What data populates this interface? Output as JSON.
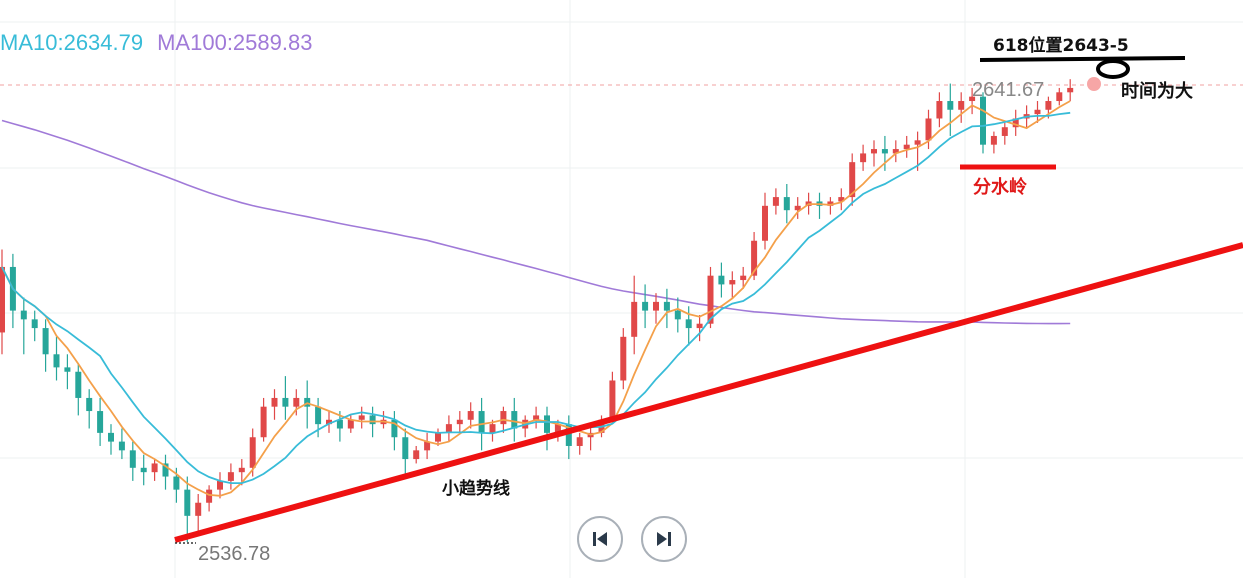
{
  "legend": {
    "ma10": "MA10:2634.79",
    "ma100": "MA100:2589.83"
  },
  "chart_data": {
    "type": "candlestick",
    "series": [
      {
        "name": "MA10:2634.79",
        "color": "#38bcd8"
      },
      {
        "name": "MA100:2589.83",
        "color": "#a07ad8"
      }
    ],
    "price_levels": {
      "high": "2641.67",
      "low": "2536.78"
    },
    "annotations": {
      "target": "618位置2643-5",
      "time": "时间为大",
      "watershed": "分水岭",
      "trendline": "小趋势线"
    },
    "colors": {
      "up": "#e04848",
      "down": "#26a69a",
      "short_ma": "#f4a04a",
      "trendline": "#ee1111"
    },
    "candles": [
      [
        2585,
        2604,
        2600,
        2580
      ],
      [
        2600,
        2603,
        2590,
        2586
      ],
      [
        2590,
        2593,
        2588,
        2580
      ],
      [
        2588,
        2590,
        2586,
        2583
      ],
      [
        2586,
        2588,
        2580,
        2576
      ],
      [
        2580,
        2584,
        2577,
        2574
      ],
      [
        2577,
        2580,
        2576,
        2572
      ],
      [
        2576,
        2578,
        2570,
        2566
      ],
      [
        2570,
        2572,
        2567,
        2563
      ],
      [
        2567,
        2570,
        2562,
        2559
      ],
      [
        2562,
        2564,
        2560,
        2557
      ],
      [
        2560,
        2563,
        2558,
        2556
      ],
      [
        2558,
        2560,
        2554,
        2551
      ],
      [
        2554,
        2557,
        2553,
        2550
      ],
      [
        2553,
        2556,
        2555,
        2551
      ],
      [
        2555,
        2557,
        2552,
        2549
      ],
      [
        2552,
        2554,
        2549,
        2546
      ],
      [
        2549,
        2552,
        2543,
        2537
      ],
      [
        2543,
        2548,
        2546,
        2539
      ],
      [
        2546,
        2550,
        2549,
        2544
      ],
      [
        2549,
        2553,
        2551,
        2547
      ],
      [
        2551,
        2555,
        2553,
        2549
      ],
      [
        2553,
        2556,
        2554,
        2550
      ],
      [
        2554,
        2563,
        2561,
        2552
      ],
      [
        2561,
        2570,
        2568,
        2560
      ],
      [
        2568,
        2572,
        2570,
        2565
      ],
      [
        2570,
        2575,
        2568,
        2565
      ],
      [
        2568,
        2572,
        2570,
        2566
      ],
      [
        2570,
        2574,
        2568,
        2563
      ],
      [
        2568,
        2570,
        2564,
        2561
      ],
      [
        2564,
        2567,
        2565,
        2562
      ],
      [
        2565,
        2567,
        2563,
        2560
      ],
      [
        2563,
        2566,
        2565,
        2562
      ],
      [
        2565,
        2568,
        2566,
        2563
      ],
      [
        2566,
        2568,
        2564,
        2561
      ],
      [
        2564,
        2567,
        2565,
        2563
      ],
      [
        2565,
        2567,
        2561,
        2558
      ],
      [
        2561,
        2563,
        2556,
        2552
      ],
      [
        2556,
        2559,
        2558,
        2555
      ],
      [
        2558,
        2562,
        2560,
        2556
      ],
      [
        2560,
        2563,
        2562,
        2559
      ],
      [
        2562,
        2566,
        2564,
        2560
      ],
      [
        2564,
        2567,
        2565,
        2562
      ],
      [
        2565,
        2569,
        2567,
        2563
      ],
      [
        2567,
        2570,
        2562,
        2558
      ],
      [
        2562,
        2565,
        2564,
        2560
      ],
      [
        2564,
        2568,
        2567,
        2562
      ],
      [
        2567,
        2570,
        2563,
        2560
      ],
      [
        2563,
        2566,
        2565,
        2561
      ],
      [
        2565,
        2568,
        2566,
        2563
      ],
      [
        2566,
        2568,
        2562,
        2558
      ],
      [
        2562,
        2565,
        2564,
        2560
      ],
      [
        2564,
        2566,
        2559,
        2556
      ],
      [
        2559,
        2562,
        2561,
        2557
      ],
      [
        2561,
        2564,
        2562,
        2558
      ],
      [
        2562,
        2566,
        2565,
        2561
      ],
      [
        2565,
        2576,
        2574,
        2564
      ],
      [
        2574,
        2586,
        2584,
        2572
      ],
      [
        2584,
        2598,
        2592,
        2580
      ],
      [
        2592,
        2596,
        2590,
        2586
      ],
      [
        2590,
        2594,
        2592,
        2587
      ],
      [
        2592,
        2595,
        2590,
        2586
      ],
      [
        2590,
        2593,
        2588,
        2585
      ],
      [
        2588,
        2591,
        2586,
        2582
      ],
      [
        2586,
        2589,
        2587,
        2583
      ],
      [
        2587,
        2600,
        2598,
        2586
      ],
      [
        2598,
        2601,
        2596,
        2593
      ],
      [
        2596,
        2599,
        2597,
        2593
      ],
      [
        2597,
        2600,
        2598,
        2595
      ],
      [
        2598,
        2608,
        2606,
        2597
      ],
      [
        2606,
        2617,
        2614,
        2604
      ],
      [
        2614,
        2618,
        2616,
        2612
      ],
      [
        2616,
        2619,
        2613,
        2610
      ],
      [
        2613,
        2616,
        2614,
        2611
      ],
      [
        2614,
        2617,
        2615,
        2612
      ],
      [
        2615,
        2617,
        2614,
        2611
      ],
      [
        2614,
        2616,
        2615,
        2612
      ],
      [
        2615,
        2618,
        2616,
        2613
      ],
      [
        2616,
        2626,
        2624,
        2614
      ],
      [
        2624,
        2628,
        2626,
        2622
      ],
      [
        2626,
        2629,
        2627,
        2623
      ],
      [
        2627,
        2630,
        2626,
        2622
      ],
      [
        2626,
        2629,
        2627,
        2624
      ],
      [
        2627,
        2630,
        2628,
        2625
      ],
      [
        2628,
        2631,
        2629,
        2622
      ],
      [
        2629,
        2636,
        2634,
        2627
      ],
      [
        2634,
        2640,
        2638,
        2632
      ],
      [
        2638,
        2642,
        2636,
        2630
      ],
      [
        2636,
        2640,
        2638,
        2633
      ],
      [
        2638,
        2641,
        2639,
        2635
      ],
      [
        2639,
        2640,
        2628,
        2626
      ],
      [
        2628,
        2631,
        2630,
        2626
      ],
      [
        2630,
        2633,
        2632,
        2628
      ],
      [
        2632,
        2636,
        2634,
        2630
      ],
      [
        2634,
        2637,
        2635,
        2632
      ],
      [
        2635,
        2638,
        2636,
        2633
      ],
      [
        2636,
        2639,
        2638,
        2634
      ],
      [
        2638,
        2641,
        2640,
        2637
      ],
      [
        2640,
        2643,
        2641,
        2638
      ]
    ]
  }
}
